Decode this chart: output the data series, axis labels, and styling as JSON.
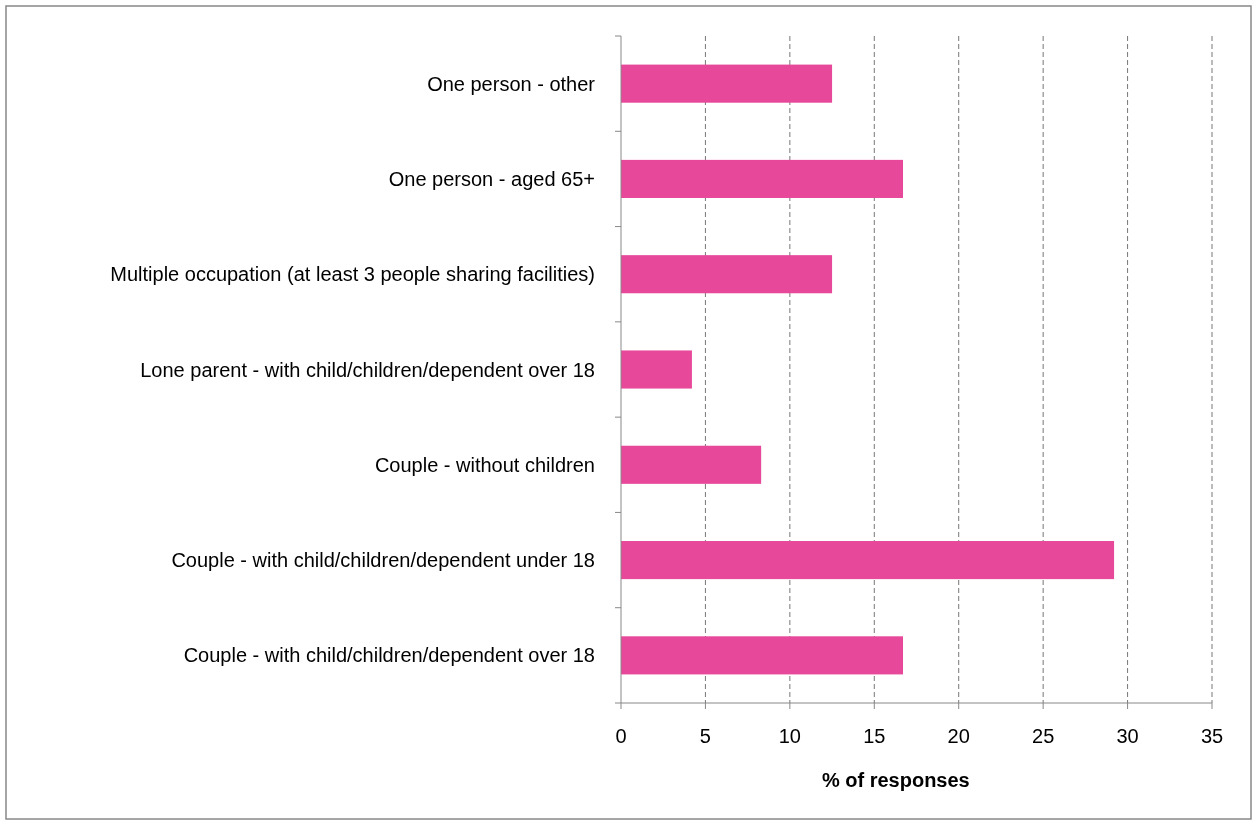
{
  "chart_data": {
    "type": "bar",
    "orientation": "horizontal",
    "categories": [
      "One person - other",
      "One person - aged 65+",
      "Multiple occupation (at least 3 people sharing facilities)",
      "Lone parent - with child/children/dependent over 18",
      "Couple - without children",
      "Couple - with child/children/dependent under 18",
      "Couple - with child/children/dependent over 18"
    ],
    "values": [
      12.5,
      16.7,
      12.5,
      4.2,
      8.3,
      29.2,
      16.7
    ],
    "color": "#e8489a",
    "xlim": [
      0,
      35
    ],
    "xticks": [
      0,
      5,
      10,
      15,
      20,
      25,
      30,
      35
    ],
    "xlabel": "% of responses",
    "grid": "x",
    "line_style": "dashed"
  }
}
